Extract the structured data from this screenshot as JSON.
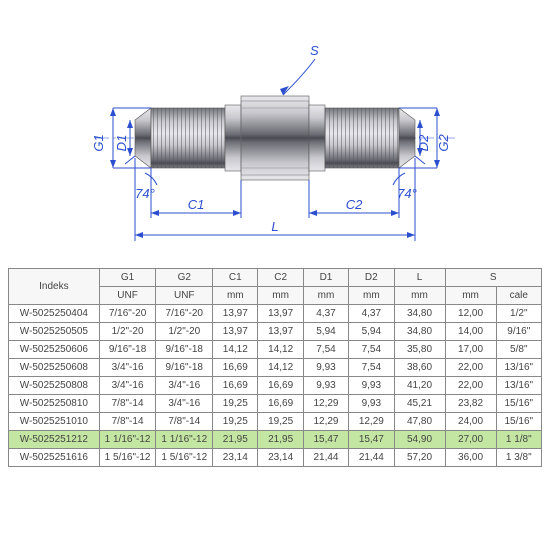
{
  "diagram": {
    "labels": {
      "S": "S",
      "G1": "G1",
      "G2": "G2",
      "D1": "D1",
      "D2": "D2",
      "C1": "C1",
      "C2": "C2",
      "L": "L",
      "ang": "74°"
    },
    "colors": {
      "dim": "#2c4fcf",
      "metal_light": "#d8d8dd",
      "metal_mid": "#a0a0a8",
      "metal_dark": "#6a6a72",
      "metal_shadow": "#4a4a52",
      "thread": "#808088"
    },
    "dim_fontsize": 13
  },
  "table": {
    "columns": [
      "Indeks",
      "G1",
      "G2",
      "C1",
      "C2",
      "D1",
      "D2",
      "L",
      "S",
      ""
    ],
    "units": [
      "",
      "UNF",
      "UNF",
      "mm",
      "mm",
      "mm",
      "mm",
      "mm",
      "mm",
      "cale"
    ],
    "highlight_row_index": 7,
    "rows": [
      [
        "W-5025250404",
        "7/16\"-20",
        "7/16\"-20",
        "13,97",
        "13,97",
        "4,37",
        "4,37",
        "34,80",
        "12,00",
        "1/2\""
      ],
      [
        "W-5025250505",
        "1/2\"-20",
        "1/2\"-20",
        "13,97",
        "13,97",
        "5,94",
        "5,94",
        "34,80",
        "14,00",
        "9/16\""
      ],
      [
        "W-5025250606",
        "9/16\"-18",
        "9/16\"-18",
        "14,12",
        "14,12",
        "7,54",
        "7,54",
        "35,80",
        "17,00",
        "5/8\""
      ],
      [
        "W-5025250608",
        "3/4\"-16",
        "9/16\"-18",
        "16,69",
        "14,12",
        "9,93",
        "7,54",
        "38,60",
        "22,00",
        "13/16\""
      ],
      [
        "W-5025250808",
        "3/4\"-16",
        "3/4\"-16",
        "16,69",
        "16,69",
        "9,93",
        "9,93",
        "41,20",
        "22,00",
        "13/16\""
      ],
      [
        "W-5025250810",
        "7/8\"-14",
        "3/4\"-16",
        "19,25",
        "16,69",
        "12,29",
        "9,93",
        "45,21",
        "23,82",
        "15/16\""
      ],
      [
        "W-5025251010",
        "7/8\"-14",
        "7/8\"-14",
        "19,25",
        "19,25",
        "12,29",
        "12,29",
        "47,80",
        "24,00",
        "15/16\""
      ],
      [
        "W-5025251212",
        "1 1/16\"-12",
        "1 1/16\"-12",
        "21,95",
        "21,95",
        "15,47",
        "15,47",
        "54,90",
        "27,00",
        "1 1/8\""
      ],
      [
        "W-5025251616",
        "1 5/16\"-12",
        "1 5/16\"-12",
        "23,14",
        "23,14",
        "21,44",
        "21,44",
        "57,20",
        "36,00",
        "1 3/8\""
      ]
    ],
    "col_widths_pct": [
      16,
      10,
      10,
      8,
      8,
      8,
      8,
      9,
      9,
      8
    ]
  }
}
